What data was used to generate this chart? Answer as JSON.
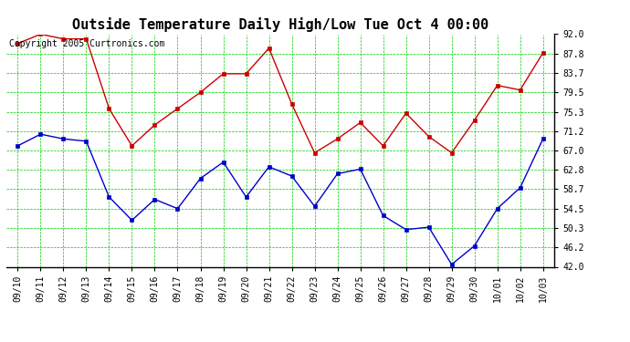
{
  "title": "Outside Temperature Daily High/Low Tue Oct 4 00:00",
  "copyright": "Copyright 2005 Curtronics.com",
  "x_labels": [
    "09/10",
    "09/11",
    "09/12",
    "09/13",
    "09/14",
    "09/15",
    "09/16",
    "09/17",
    "09/18",
    "09/19",
    "09/20",
    "09/21",
    "09/22",
    "09/23",
    "09/24",
    "09/25",
    "09/26",
    "09/27",
    "09/28",
    "09/29",
    "09/30",
    "10/01",
    "10/02",
    "10/03"
  ],
  "high_values": [
    90.0,
    92.0,
    91.0,
    91.0,
    76.0,
    68.0,
    72.5,
    76.0,
    79.5,
    83.5,
    83.5,
    89.0,
    77.0,
    66.5,
    69.5,
    73.0,
    68.0,
    75.0,
    70.0,
    66.5,
    73.5,
    81.0,
    80.0,
    88.0
  ],
  "low_values": [
    68.0,
    70.5,
    69.5,
    69.0,
    57.0,
    52.0,
    56.5,
    54.5,
    61.0,
    64.5,
    57.0,
    63.5,
    61.5,
    55.0,
    62.0,
    63.0,
    53.0,
    50.0,
    50.5,
    42.5,
    46.5,
    54.5,
    59.0,
    69.5
  ],
  "high_color": "#cc0000",
  "low_color": "#0000cc",
  "bg_color": "#ffffff",
  "grid_color": "#00cc00",
  "y_min": 42.0,
  "y_max": 92.0,
  "y_ticks": [
    42.0,
    46.2,
    50.3,
    54.5,
    58.7,
    62.8,
    67.0,
    71.2,
    75.3,
    79.5,
    83.7,
    87.8,
    92.0
  ],
  "title_fontsize": 11,
  "tick_fontsize": 7,
  "copyright_fontsize": 7
}
